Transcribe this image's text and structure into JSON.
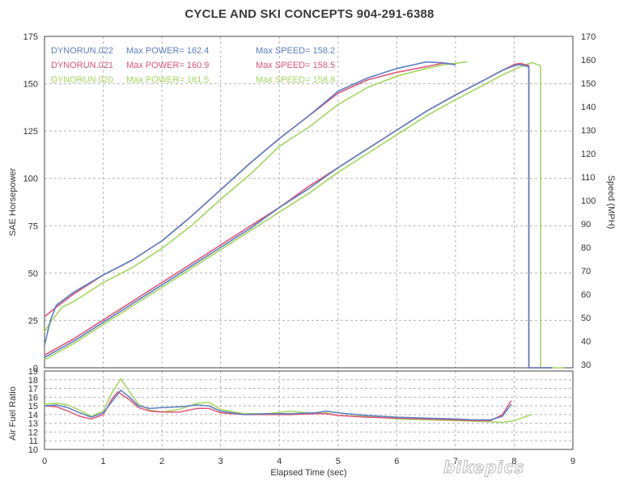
{
  "page": {
    "title": "CYCLE AND SKI CONCEPTS  904-291-6388",
    "watermark": "bikepics"
  },
  "chart_data": [
    {
      "type": "line",
      "title": "CYCLE AND SKI CONCEPTS  904-291-6388",
      "xlabel": "Elapsed Time (sec)",
      "ylabel": "SAE Horsepower",
      "y2label": "Speed (MPH)",
      "xlim": [
        0,
        9
      ],
      "ylim": [
        0,
        175
      ],
      "y2lim": [
        28.6,
        170
      ],
      "xticks": [
        0,
        1,
        2,
        3,
        4,
        5,
        6,
        7,
        8,
        9
      ],
      "yticks": [
        0,
        25,
        50,
        75,
        100,
        125,
        150,
        175
      ],
      "y2ticks": [
        30,
        40,
        50,
        60,
        70,
        80,
        90,
        100,
        110,
        120,
        130,
        140,
        150,
        160,
        170
      ],
      "grid": true,
      "legend": [
        {
          "label": "DYNORUN.022",
          "power": "Max POWER= 162.4",
          "speed": "Max SPEED= 158.2",
          "color": "#5b7ec0"
        },
        {
          "label": "DYNORUN.021",
          "power": "Max POWER= 160.9",
          "speed": "Max SPEED= 158.5",
          "color": "#df5577"
        },
        {
          "label": "DYNORUN.020",
          "power": "Max POWER= 161.5",
          "speed": "Max SPEED= 158.8",
          "color": "#a3d65e"
        }
      ],
      "series": [
        {
          "name": "DYNORUN.022",
          "quantity": "power",
          "color": "#5b7ec0",
          "x": [
            0,
            0.1,
            0.2,
            0.5,
            1,
            1.5,
            2,
            2.5,
            3,
            3.5,
            4,
            4.5,
            5,
            5.5,
            6,
            6.5,
            6.8,
            7
          ],
          "y": [
            12,
            25,
            33,
            40,
            49,
            57,
            67,
            80,
            94,
            108,
            121,
            133,
            146,
            153,
            158,
            161.5,
            161,
            160
          ]
        },
        {
          "name": "DYNORUN.021",
          "quantity": "power",
          "color": "#df5577",
          "x": [
            0,
            0.2,
            0.5,
            1,
            1.5,
            2,
            2.5,
            3,
            3.5,
            4,
            4.5,
            5,
            5.5,
            6,
            6.5,
            6.8,
            7
          ],
          "y": [
            27,
            32,
            39,
            49,
            57,
            67,
            80,
            94,
            108,
            121,
            133,
            145,
            152,
            156,
            159,
            160.9,
            160
          ]
        },
        {
          "name": "DYNORUN.020",
          "quantity": "power",
          "color": "#a3d65e",
          "x": [
            0,
            0.1,
            0.3,
            0.5,
            1,
            1.5,
            2,
            2.5,
            3,
            3.5,
            4,
            4.5,
            5,
            5.5,
            6,
            6.5,
            6.8,
            7.2
          ],
          "y": [
            19,
            24,
            32,
            35,
            45,
            53,
            63,
            75,
            89,
            102,
            117,
            127,
            139,
            148,
            154,
            158,
            160,
            161.5
          ]
        },
        {
          "name": "DYNORUN.022",
          "quantity": "speed",
          "color": "#5b7ec0",
          "x": [
            0,
            0.5,
            1,
            1.5,
            2,
            2.5,
            3,
            3.5,
            4,
            4.5,
            5,
            5.5,
            6,
            6.5,
            7,
            7.5,
            7.8,
            8,
            8.1,
            8.25
          ],
          "y": [
            33,
            40,
            48,
            56,
            64,
            72,
            80,
            88,
            97,
            105,
            114,
            122,
            130,
            138,
            145,
            151.5,
            155.5,
            157.5,
            158,
            157
          ]
        },
        {
          "name": "DYNORUN.021",
          "quantity": "speed",
          "color": "#df5577",
          "x": [
            0,
            0.5,
            1,
            1.5,
            2,
            2.5,
            3,
            3.5,
            4,
            4.5,
            5,
            5.5,
            6,
            6.5,
            7,
            7.5,
            7.8,
            8,
            8.1,
            8.25
          ],
          "y": [
            34,
            41,
            49,
            57,
            65,
            73,
            81,
            89,
            97,
            106,
            114,
            122,
            130,
            138,
            145,
            151.5,
            155.5,
            158,
            158.5,
            157.5
          ]
        },
        {
          "name": "DYNORUN.020",
          "quantity": "speed",
          "color": "#a3d65e",
          "x": [
            0,
            0.5,
            1,
            1.5,
            2,
            2.5,
            3,
            3.5,
            4,
            4.5,
            5,
            5.5,
            6,
            6.5,
            7,
            7.5,
            7.8,
            8.1,
            8.3,
            8.45
          ],
          "y": [
            32,
            39,
            47,
            55,
            63,
            71,
            79,
            87,
            95,
            103,
            112,
            120,
            128,
            136,
            143,
            149.5,
            153.5,
            157,
            158.8,
            157.5
          ]
        }
      ]
    },
    {
      "type": "line",
      "xlabel": "Elapsed Time (sec)",
      "ylabel": "Air Fuel Ratio",
      "xlim": [
        0,
        9
      ],
      "ylim": [
        10,
        19
      ],
      "xticks": [
        0,
        1,
        2,
        3,
        4,
        5,
        6,
        7,
        8,
        9
      ],
      "yticks": [
        10,
        11,
        12,
        13,
        14,
        15,
        16,
        17,
        18,
        19
      ],
      "grid": true,
      "series": [
        {
          "name": "DYNORUN.022",
          "color": "#5b7ec0",
          "x": [
            0,
            0.2,
            0.4,
            0.6,
            0.8,
            1,
            1.15,
            1.3,
            1.45,
            1.6,
            1.8,
            2,
            2.3,
            2.6,
            2.8,
            3,
            3.4,
            3.8,
            4.2,
            4.6,
            4.8,
            5,
            5.5,
            6,
            6.5,
            7,
            7.3,
            7.6,
            7.8,
            7.95
          ],
          "y": [
            15,
            15.1,
            14.8,
            14.2,
            13.7,
            14.2,
            15.5,
            16.8,
            16,
            15,
            14.7,
            14.8,
            14.9,
            15.1,
            15,
            14.4,
            14,
            14.1,
            14.1,
            14.2,
            14.4,
            14.2,
            13.9,
            13.7,
            13.6,
            13.5,
            13.4,
            13.4,
            13.8,
            15.2
          ]
        },
        {
          "name": "DYNORUN.021",
          "color": "#df5577",
          "x": [
            0,
            0.2,
            0.4,
            0.6,
            0.8,
            1,
            1.15,
            1.25,
            1.45,
            1.6,
            1.8,
            2,
            2.3,
            2.6,
            2.8,
            3,
            3.4,
            3.8,
            4.2,
            4.6,
            4.8,
            5,
            5.5,
            6,
            6.5,
            7,
            7.3,
            7.6,
            7.8,
            7.95
          ],
          "y": [
            15,
            14.9,
            14.4,
            13.8,
            13.5,
            14,
            15.8,
            16.6,
            15.7,
            14.8,
            14.4,
            14.3,
            14.3,
            14.7,
            14.7,
            14.2,
            14,
            14,
            14,
            14.1,
            14.1,
            13.9,
            13.7,
            13.6,
            13.5,
            13.4,
            13.3,
            13.3,
            14,
            15.6
          ]
        },
        {
          "name": "DYNORUN.020",
          "color": "#a3d65e",
          "x": [
            0,
            0.2,
            0.4,
            0.6,
            0.8,
            1,
            1.15,
            1.3,
            1.45,
            1.6,
            1.8,
            2,
            2.3,
            2.6,
            2.8,
            3,
            3.4,
            3.8,
            4.2,
            4.6,
            4.8,
            5,
            5.5,
            6,
            6.5,
            7,
            7.5,
            7.8,
            8,
            8.3
          ],
          "y": [
            15.2,
            15.3,
            15.1,
            14.5,
            13.8,
            14.4,
            16.5,
            18.1,
            16.6,
            15.2,
            14.5,
            14.3,
            14.6,
            15.3,
            15.4,
            14.6,
            14.1,
            14.1,
            14.4,
            14.1,
            14.2,
            13.9,
            13.8,
            13.5,
            13.4,
            13.3,
            13.2,
            13.1,
            13.3,
            14
          ]
        }
      ]
    }
  ]
}
